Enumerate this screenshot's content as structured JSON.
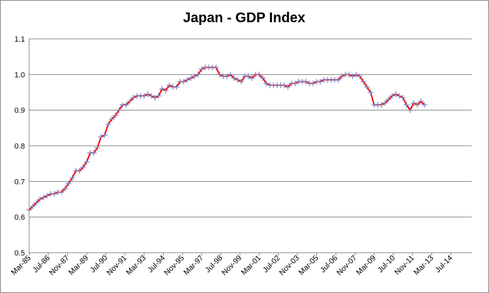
{
  "chart_data": {
    "type": "line",
    "title": "Japan - GDP Index",
    "x": [
      "Mar-85",
      "Jun-85",
      "Sep-85",
      "Dec-85",
      "Mar-86",
      "Jun-86",
      "Sep-86",
      "Dec-86",
      "Mar-87",
      "Jun-87",
      "Sep-87",
      "Dec-87",
      "Mar-88",
      "Jun-88",
      "Sep-88",
      "Dec-88",
      "Mar-89",
      "Jun-89",
      "Sep-89",
      "Dec-89",
      "Mar-90",
      "Jun-90",
      "Sep-90",
      "Dec-90",
      "Mar-91",
      "Jun-91",
      "Sep-91",
      "Dec-91",
      "Mar-92",
      "Jun-92",
      "Sep-92",
      "Dec-92",
      "Mar-93",
      "Jun-93",
      "Sep-93",
      "Dec-93",
      "Mar-94",
      "Jun-94",
      "Sep-94",
      "Dec-94",
      "Mar-95",
      "Jun-95",
      "Sep-95",
      "Dec-95",
      "Mar-96",
      "Jun-96",
      "Sep-96",
      "Dec-96",
      "Mar-97",
      "Jun-97",
      "Sep-97",
      "Dec-97",
      "Mar-98",
      "Jun-98",
      "Sep-98",
      "Dec-98",
      "Mar-99",
      "Jun-99",
      "Sep-99",
      "Dec-99",
      "Mar-00",
      "Jun-00",
      "Sep-00",
      "Dec-00",
      "Mar-01",
      "Jun-01",
      "Sep-01",
      "Dec-01",
      "Mar-02",
      "Jun-02",
      "Sep-02",
      "Dec-02",
      "Mar-03",
      "Jun-03",
      "Sep-03",
      "Dec-03",
      "Mar-04",
      "Jun-04",
      "Sep-04",
      "Dec-04",
      "Mar-05",
      "Jun-05",
      "Sep-05",
      "Dec-05",
      "Mar-06",
      "Jun-06",
      "Sep-06",
      "Dec-06",
      "Mar-07",
      "Jun-07",
      "Sep-07",
      "Dec-07",
      "Mar-08",
      "Jun-08",
      "Sep-08",
      "Dec-08",
      "Mar-09",
      "Jun-09",
      "Sep-09",
      "Dec-09",
      "Mar-10",
      "Jun-10",
      "Sep-10",
      "Dec-10",
      "Mar-11",
      "Jun-11",
      "Sep-11",
      "Dec-11",
      "Mar-12",
      "Jun-12",
      "Sep-12"
    ],
    "series": [
      {
        "name": "GDP Index",
        "color": "#ff0000",
        "marker_color": "#7f7fbf",
        "values": [
          0.62,
          0.63,
          0.64,
          0.65,
          0.655,
          0.66,
          0.665,
          0.665,
          0.67,
          0.67,
          0.68,
          0.695,
          0.71,
          0.73,
          0.73,
          0.74,
          0.755,
          0.78,
          0.78,
          0.795,
          0.825,
          0.83,
          0.86,
          0.875,
          0.885,
          0.9,
          0.915,
          0.915,
          0.925,
          0.935,
          0.94,
          0.94,
          0.94,
          0.945,
          0.94,
          0.935,
          0.94,
          0.96,
          0.955,
          0.97,
          0.965,
          0.965,
          0.98,
          0.98,
          0.985,
          0.99,
          0.995,
          1.0,
          1.015,
          1.02,
          1.02,
          1.02,
          1.02,
          1.0,
          0.995,
          0.995,
          1.0,
          0.99,
          0.985,
          0.98,
          0.995,
          0.995,
          0.99,
          1.0,
          1.0,
          0.99,
          0.975,
          0.97,
          0.97,
          0.97,
          0.97,
          0.97,
          0.965,
          0.975,
          0.975,
          0.98,
          0.98,
          0.98,
          0.975,
          0.975,
          0.98,
          0.98,
          0.985,
          0.985,
          0.985,
          0.985,
          0.985,
          0.995,
          1.0,
          1.0,
          0.995,
          1.0,
          0.995,
          0.98,
          0.965,
          0.95,
          0.915,
          0.915,
          0.915,
          0.92,
          0.93,
          0.94,
          0.945,
          0.94,
          0.935,
          0.915,
          0.9,
          0.92,
          0.915,
          0.925,
          0.915
        ]
      }
    ],
    "xlim": [
      "Mar-85",
      "Jul-14"
    ],
    "xticks": [
      "Mar-85",
      "Jul-86",
      "Nov-87",
      "Mar-89",
      "Jul-90",
      "Nov-91",
      "Mar-93",
      "Jul-94",
      "Nov-95",
      "Mar-97",
      "Jul-98",
      "Nov-99",
      "Mar-01",
      "Jul-02",
      "Nov-03",
      "Mar-05",
      "Jul-06",
      "Nov-07",
      "Mar-09",
      "Jul-10",
      "Nov-11",
      "Mar-13",
      "Jul-14"
    ],
    "ylim": [
      0.5,
      1.1
    ],
    "yticks": [
      0.5,
      0.6,
      0.7,
      0.8,
      0.9,
      {
        "value": 1.0,
        "label": "1.0"
      },
      1.1
    ],
    "grid": true
  }
}
